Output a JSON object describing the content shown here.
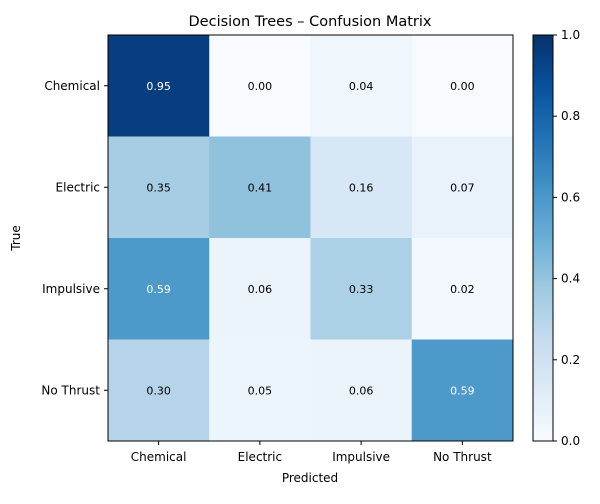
{
  "chart_data": {
    "type": "heatmap",
    "title": "Decision Trees – Confusion Matrix",
    "xlabel": "Predicted",
    "ylabel": "True",
    "x_categories": [
      "Chemical",
      "Electric",
      "Impulsive",
      "No Thrust"
    ],
    "y_categories": [
      "Chemical",
      "Electric",
      "Impulsive",
      "No Thrust"
    ],
    "values": [
      [
        0.95,
        0.0,
        0.04,
        0.0
      ],
      [
        0.35,
        0.41,
        0.16,
        0.07
      ],
      [
        0.59,
        0.06,
        0.33,
        0.02
      ],
      [
        0.3,
        0.05,
        0.06,
        0.59
      ]
    ],
    "value_format_decimals": 2,
    "colormap": "Blues",
    "colorbar": {
      "range": [
        0.0,
        1.0
      ],
      "ticks": [
        0.0,
        0.2,
        0.4,
        0.6,
        0.8,
        1.0
      ],
      "tick_labels": [
        "0.0",
        "0.2",
        "0.4",
        "0.6",
        "0.8",
        "1.0"
      ]
    },
    "text_color_threshold": 0.5,
    "text_color_light": "#ffffff",
    "text_color_dark": "#000000"
  }
}
